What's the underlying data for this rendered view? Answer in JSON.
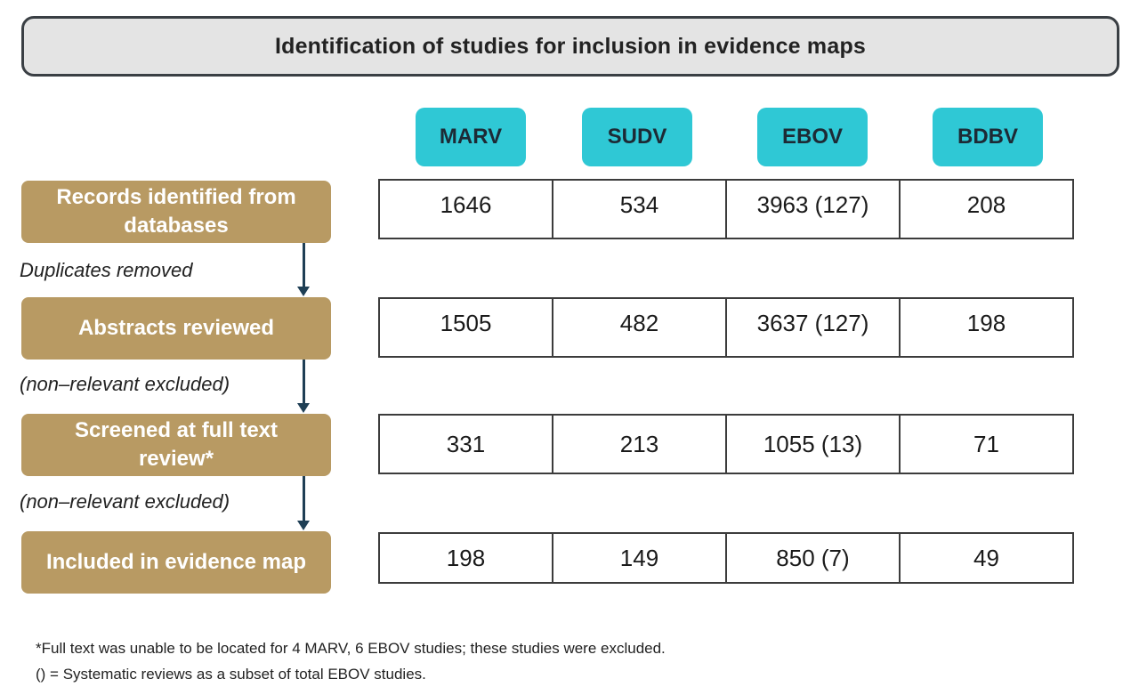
{
  "title": "Identification of studies for inclusion in evidence maps",
  "viruses": [
    "MARV",
    "SUDV",
    "EBOV",
    "BDBV"
  ],
  "stages": [
    {
      "label": "Records identified from databases",
      "values": [
        "1646",
        "534",
        "3963 (127)",
        "208"
      ]
    },
    {
      "label": "Abstracts reviewed",
      "values": [
        "1505",
        "482",
        "3637 (127)",
        "198"
      ]
    },
    {
      "label": "Screened at  full text review*",
      "values": [
        "331",
        "213",
        "1055 (13)",
        "71"
      ]
    },
    {
      "label": "Included in evidence map",
      "values": [
        "198",
        "149",
        "850 (7)",
        "49"
      ]
    }
  ],
  "step_notes": [
    "Duplicates removed",
    "(non–relevant excluded)",
    "(non–relevant excluded)"
  ],
  "footnotes": [
    "*Full text was unable to be located for 4 MARV, 6 EBOV studies; these studies were excluded.",
    "() = Systematic reviews as a subset of total EBOV studies."
  ],
  "colors": {
    "title_bg": "#e4e4e4",
    "header_teal": "#2fc8d5",
    "stage_tan": "#b89a63",
    "arrow": "#1f3f55"
  }
}
